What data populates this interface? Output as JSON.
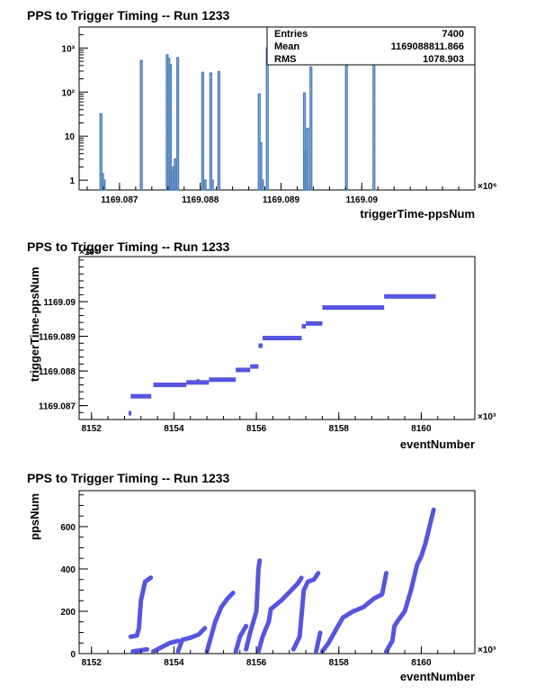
{
  "colors": {
    "hist_line": "#4f81bd",
    "hist_hatch": "#9aa3aa",
    "marker": "#5555e0",
    "axis": "#000000"
  },
  "chart_data": [
    {
      "type": "bar",
      "title": "PPS to Trigger Timing -- Run 1233",
      "xlabel": "triggerTime-ppsNum",
      "ylabel": "",
      "x_multiplier": "×10⁶",
      "xlim": [
        1169.0865,
        1169.0914
      ],
      "ylim": [
        0.6,
        3000
      ],
      "yscale": "log",
      "xticks": [
        "1169.087",
        "1169.088",
        "1169.089",
        "1169.09"
      ],
      "yticks": [
        "1",
        "10",
        "10²",
        "10³"
      ],
      "stats": {
        "title_entries": "Entries",
        "entries": "7400",
        "title_mean": "Mean",
        "mean": "1169088811.866",
        "title_rms": "RMS",
        "rms": "1078.903"
      },
      "bins": [
        {
          "x": 1169.08677,
          "y": 32
        },
        {
          "x": 1169.08679,
          "y": 1.4
        },
        {
          "x": 1169.08681,
          "y": 1.0
        },
        {
          "x": 1169.08727,
          "y": 520
        },
        {
          "x": 1169.08759,
          "y": 700
        },
        {
          "x": 1169.08761,
          "y": 580
        },
        {
          "x": 1169.08763,
          "y": 420
        },
        {
          "x": 1169.08765,
          "y": 1.5
        },
        {
          "x": 1169.08767,
          "y": 2.0
        },
        {
          "x": 1169.08769,
          "y": 3.0
        },
        {
          "x": 1169.08772,
          "y": 600
        },
        {
          "x": 1169.08803,
          "y": 280
        },
        {
          "x": 1169.08806,
          "y": 1.0
        },
        {
          "x": 1169.08813,
          "y": 270
        },
        {
          "x": 1169.08815,
          "y": 1.0
        },
        {
          "x": 1169.08823,
          "y": 290
        },
        {
          "x": 1169.08873,
          "y": 90
        },
        {
          "x": 1169.08875,
          "y": 7
        },
        {
          "x": 1169.08877,
          "y": 1.0
        },
        {
          "x": 1169.08883,
          "y": 1000
        },
        {
          "x": 1169.08929,
          "y": 95
        },
        {
          "x": 1169.08931,
          "y": 4.5
        },
        {
          "x": 1169.08933,
          "y": 15
        },
        {
          "x": 1169.08937,
          "y": 370
        },
        {
          "x": 1169.08981,
          "y": 1400
        },
        {
          "x": 1169.09015,
          "y": 1150
        }
      ]
    },
    {
      "type": "scatter",
      "title": "PPS to Trigger Timing -- Run 1233",
      "xlabel": "eventNumber",
      "ylabel": "triggerTime-ppsNum",
      "x_multiplier": "×10³",
      "y_multiplier": "×10⁶",
      "xlim": [
        8151.7,
        8161.3
      ],
      "ylim": [
        1169.0866,
        1169.0913
      ],
      "xticks": [
        "8152",
        "8154",
        "8156",
        "8158",
        "8160"
      ],
      "yticks": [
        "1169.087",
        "1169.088",
        "1169.089",
        "1169.09"
      ],
      "segments": [
        {
          "x0": 8152.9,
          "x1": 8152.95,
          "y": 1169.08678
        },
        {
          "x0": 8152.95,
          "x1": 8153.45,
          "y": 1169.08727
        },
        {
          "x0": 8153.5,
          "x1": 8154.3,
          "y": 1169.0876
        },
        {
          "x0": 8154.3,
          "x1": 8154.85,
          "y": 1169.08767
        },
        {
          "x0": 8154.55,
          "x1": 8154.6,
          "y": 1169.0877
        },
        {
          "x0": 8154.85,
          "x1": 8155.5,
          "y": 1169.08775
        },
        {
          "x0": 8155.5,
          "x1": 8155.85,
          "y": 1169.08803
        },
        {
          "x0": 8155.85,
          "x1": 8156.05,
          "y": 1169.08813
        },
        {
          "x0": 8156.05,
          "x1": 8156.15,
          "y": 1169.08873
        },
        {
          "x0": 8156.15,
          "x1": 8157.1,
          "y": 1169.08895
        },
        {
          "x0": 8157.1,
          "x1": 8157.2,
          "y": 1169.08929
        },
        {
          "x0": 8157.2,
          "x1": 8157.6,
          "y": 1169.08937
        },
        {
          "x0": 8157.6,
          "x1": 8159.1,
          "y": 1169.08983
        },
        {
          "x0": 8159.1,
          "x1": 8160.35,
          "y": 1169.09015
        }
      ]
    },
    {
      "type": "scatter",
      "title": "PPS to Trigger Timing -- Run 1233",
      "xlabel": "eventNumber",
      "ylabel": "ppsNum",
      "x_multiplier": "×10³",
      "xlim": [
        8151.7,
        8161.3
      ],
      "ylim": [
        0,
        770
      ],
      "xticks": [
        "8152",
        "8154",
        "8156",
        "8158",
        "8160"
      ],
      "yticks": [
        "0",
        "200",
        "400",
        "600"
      ],
      "tracks": [
        [
          [
            8152.95,
            80
          ],
          [
            8153.1,
            85
          ],
          [
            8153.15,
            120
          ],
          [
            8153.2,
            250
          ],
          [
            8153.3,
            340
          ],
          [
            8153.45,
            360
          ]
        ],
        [
          [
            8153.0,
            10
          ],
          [
            8153.35,
            20
          ]
        ],
        [
          [
            8153.5,
            10
          ],
          [
            8153.7,
            30
          ],
          [
            8153.9,
            50
          ],
          [
            8154.1,
            60
          ]
        ],
        [
          [
            8154.1,
            10
          ],
          [
            8154.2,
            65
          ],
          [
            8154.4,
            75
          ],
          [
            8154.6,
            90
          ],
          [
            8154.75,
            120
          ]
        ],
        [
          [
            8154.8,
            10
          ],
          [
            8154.9,
            80
          ],
          [
            8155.0,
            150
          ],
          [
            8155.15,
            220
          ],
          [
            8155.3,
            260
          ],
          [
            8155.45,
            290
          ]
        ],
        [
          [
            8155.5,
            10
          ],
          [
            8155.6,
            80
          ],
          [
            8155.75,
            130
          ]
        ],
        [
          [
            8155.75,
            20
          ],
          [
            8155.85,
            100
          ],
          [
            8156.0,
            200
          ],
          [
            8156.05,
            400
          ],
          [
            8156.08,
            440
          ]
        ],
        [
          [
            8156.05,
            10
          ],
          [
            8156.15,
            80
          ],
          [
            8156.3,
            150
          ],
          [
            8156.35,
            210
          ],
          [
            8156.6,
            250
          ],
          [
            8156.85,
            300
          ],
          [
            8157.0,
            330
          ],
          [
            8157.1,
            360
          ]
        ],
        [
          [
            8156.9,
            20
          ],
          [
            8157.05,
            80
          ],
          [
            8157.15,
            300
          ],
          [
            8157.25,
            340
          ],
          [
            8157.4,
            350
          ],
          [
            8157.5,
            380
          ]
        ],
        [
          [
            8157.45,
            10
          ],
          [
            8157.55,
            100
          ]
        ],
        [
          [
            8157.6,
            10
          ],
          [
            8157.75,
            50
          ],
          [
            8157.95,
            120
          ],
          [
            8158.1,
            170
          ],
          [
            8158.35,
            200
          ],
          [
            8158.6,
            220
          ],
          [
            8158.85,
            260
          ],
          [
            8159.05,
            280
          ],
          [
            8159.15,
            380
          ]
        ],
        [
          [
            8159.15,
            10
          ],
          [
            8159.3,
            60
          ],
          [
            8159.35,
            130
          ],
          [
            8159.45,
            160
          ],
          [
            8159.6,
            200
          ],
          [
            8159.75,
            300
          ],
          [
            8159.9,
            420
          ],
          [
            8160.0,
            460
          ],
          [
            8160.1,
            520
          ],
          [
            8160.2,
            600
          ],
          [
            8160.3,
            680
          ]
        ]
      ]
    }
  ]
}
